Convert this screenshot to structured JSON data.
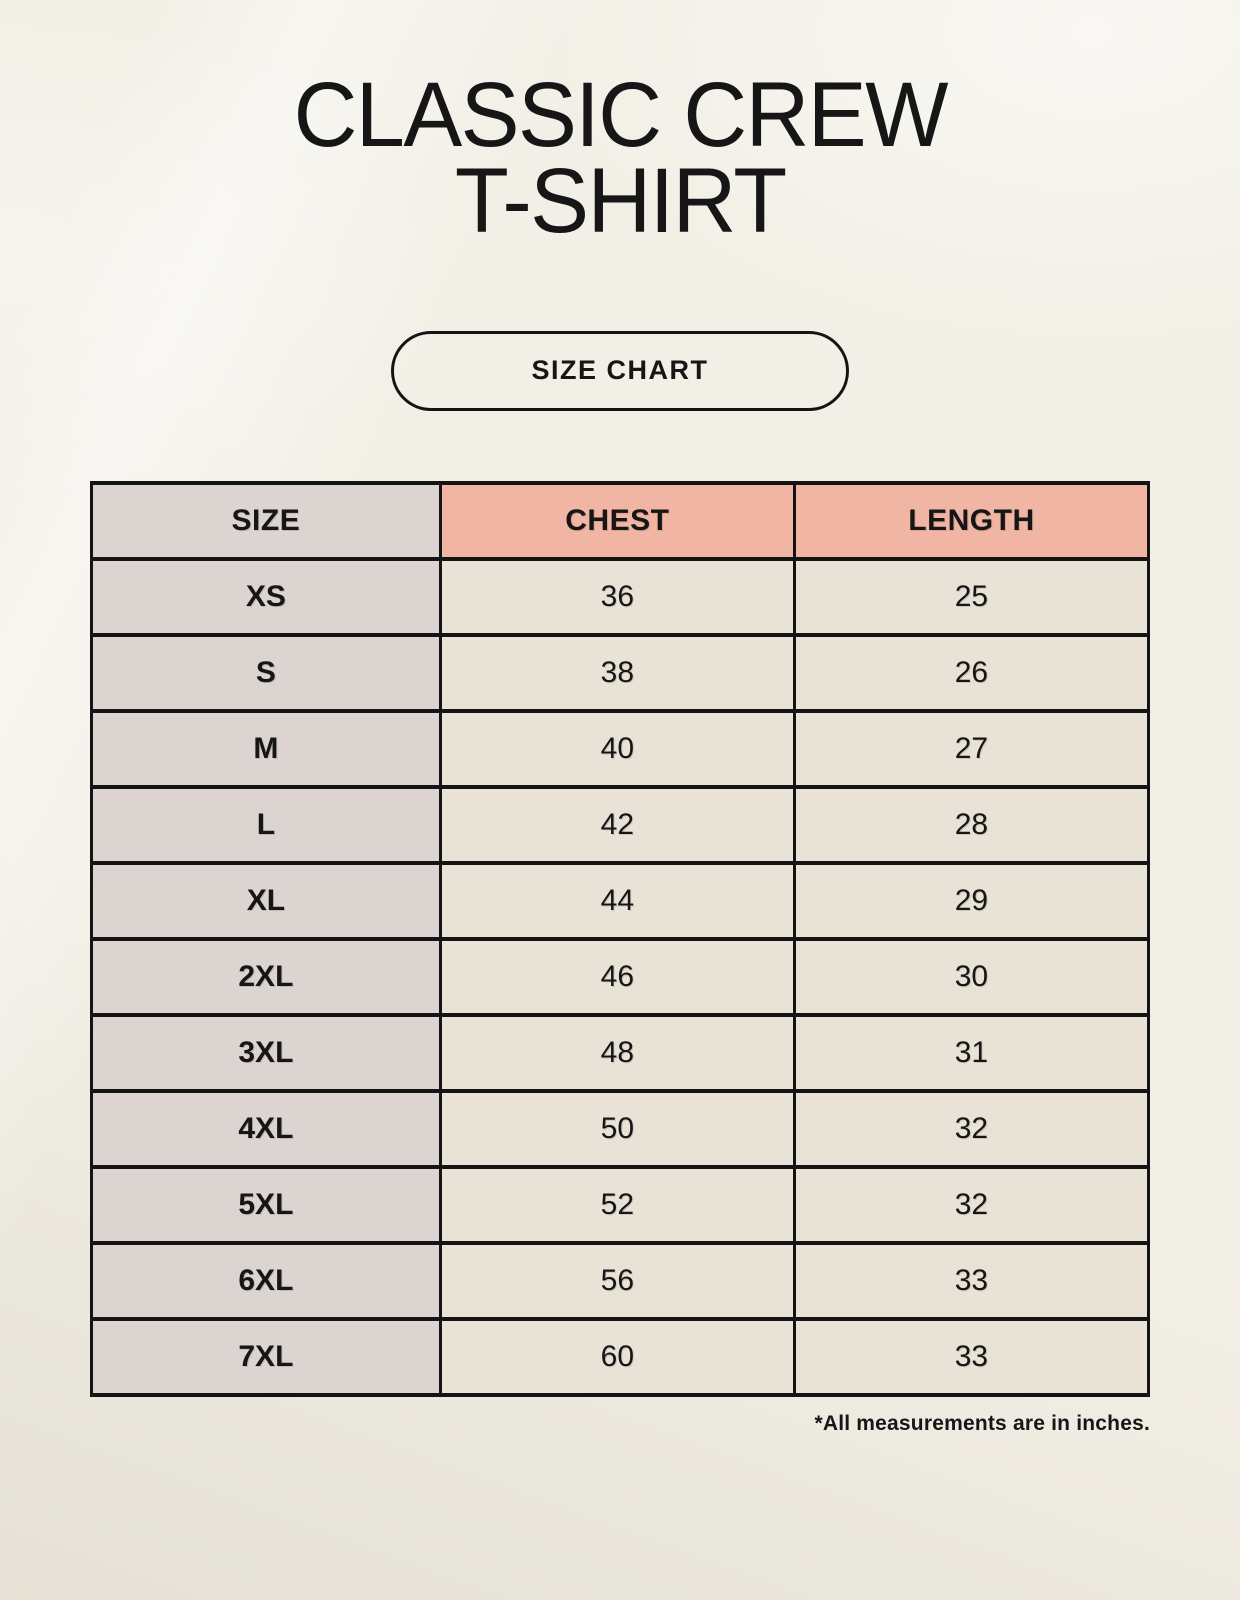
{
  "page": {
    "title": [
      "CLASSIC CREW",
      "T-SHIRT"
    ],
    "size_chart_button": "SIZE CHART",
    "footnote": "*All measurements are in inches."
  },
  "colors": {
    "background": "#f2efe6",
    "header-accent": "#f1b5a3",
    "size-column": "#dbd4d0",
    "cell": "#e9e3d7",
    "border": "#141414",
    "text": "#161616"
  },
  "table": {
    "columns": [
      "SIZE",
      "CHEST",
      "LENGTH"
    ],
    "rows": [
      [
        "XS",
        "36",
        "25"
      ],
      [
        "S",
        "38",
        "26"
      ],
      [
        "M",
        "40",
        "27"
      ],
      [
        "L",
        "42",
        "28"
      ],
      [
        "XL",
        "44",
        "29"
      ],
      [
        "2XL",
        "46",
        "30"
      ],
      [
        "3XL",
        "48",
        "31"
      ],
      [
        "4XL",
        "50",
        "32"
      ],
      [
        "5XL",
        "52",
        "32"
      ],
      [
        "6XL",
        "56",
        "33"
      ],
      [
        "7XL",
        "60",
        "33"
      ]
    ]
  }
}
